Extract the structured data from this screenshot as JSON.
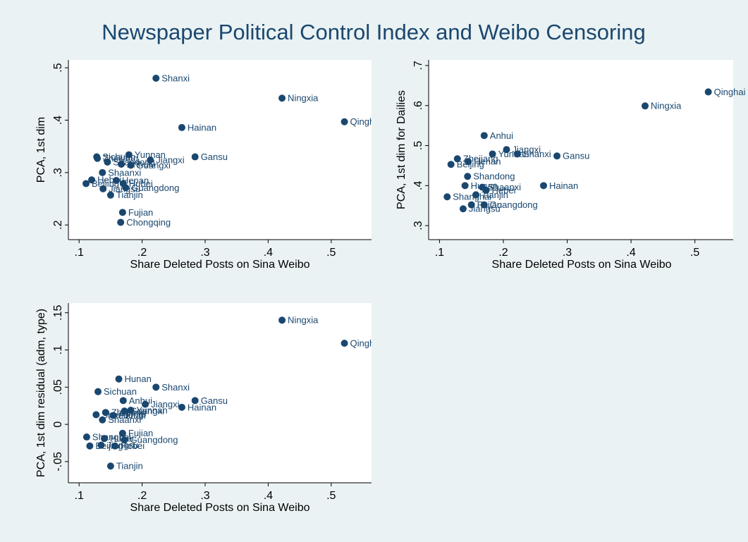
{
  "title": "Newspaper Political Control Index and Weibo Censoring",
  "chart_data": [
    {
      "type": "scatter",
      "x_label": "Share Deleted Posts on Sina Weibo",
      "y_label": "PCA, 1st dim",
      "color": "#1a476f",
      "xlim": [
        0.083,
        0.564
      ],
      "ylim": [
        0.172,
        0.515
      ],
      "xticks": [
        {
          "value": 0.1,
          "label": ".1"
        },
        {
          "value": 0.2,
          "label": ".2"
        },
        {
          "value": 0.3,
          "label": ".3"
        },
        {
          "value": 0.4,
          "label": ".4"
        },
        {
          "value": 0.5,
          "label": ".5"
        }
      ],
      "yticks": [
        {
          "value": 0.2,
          "label": ".2"
        },
        {
          "value": 0.3,
          "label": ".3"
        },
        {
          "value": 0.4,
          "label": ".4"
        },
        {
          "value": 0.5,
          "label": ".5"
        }
      ],
      "labels": [
        "Shanxi",
        "Ningxia",
        "Qinghai",
        "Hainan",
        "Gansu",
        "Yunnan",
        "Jiangxi",
        "Guangxi",
        "Anhui",
        "Sichuan",
        "Zhejiang",
        "Shandong",
        "Shaanxi",
        "Hebei",
        "Beijing",
        "Henan",
        "Hubei",
        "Jiangsu",
        "Guangdong",
        "Tianjin",
        "Fujian",
        "Chongqing"
      ],
      "x": [
        0.222,
        0.422,
        0.521,
        0.263,
        0.284,
        0.179,
        0.213,
        0.182,
        0.167,
        0.128,
        0.129,
        0.145,
        0.137,
        0.12,
        0.111,
        0.159,
        0.17,
        0.138,
        0.174,
        0.15,
        0.169,
        0.166
      ],
      "values": [
        0.48,
        0.442,
        0.397,
        0.386,
        0.33,
        0.334,
        0.324,
        0.314,
        0.316,
        0.33,
        0.327,
        0.32,
        0.3,
        0.286,
        0.279,
        0.285,
        0.279,
        0.269,
        0.271,
        0.257,
        0.224,
        0.205
      ]
    },
    {
      "type": "scatter",
      "x_label": "Share Deleted Posts on Sina Weibo",
      "y_label": "PCA, 1st dim for Dailies",
      "color": "#1a476f",
      "xlim": [
        0.083,
        0.56
      ],
      "ylim": [
        0.265,
        0.714
      ],
      "xticks": [
        {
          "value": 0.1,
          "label": ".1"
        },
        {
          "value": 0.2,
          "label": ".2"
        },
        {
          "value": 0.3,
          "label": ".3"
        },
        {
          "value": 0.4,
          "label": ".4"
        },
        {
          "value": 0.5,
          "label": ".5"
        }
      ],
      "yticks": [
        {
          "value": 0.3,
          "label": ".3"
        },
        {
          "value": 0.4,
          "label": ".4"
        },
        {
          "value": 0.5,
          "label": ".5"
        },
        {
          "value": 0.6,
          "label": ".6"
        },
        {
          "value": 0.7,
          "label": ".7"
        }
      ],
      "labels": [
        "Qinghai",
        "Ningxia",
        "Anhui",
        "Jiangxi",
        "Shanxi",
        "Yunnan",
        "Gansu",
        "Zhejiang",
        "Henan",
        "Beijing",
        "Shandong",
        "Hainan",
        "Shaanxi",
        "Hunan",
        "Hebei",
        "Shanghai",
        "Tianjin",
        "Guangdong",
        "Fujian",
        "Jiangsu"
      ],
      "x": [
        0.521,
        0.422,
        0.17,
        0.205,
        0.222,
        0.183,
        0.284,
        0.128,
        0.145,
        0.118,
        0.144,
        0.263,
        0.167,
        0.14,
        0.173,
        0.112,
        0.157,
        0.17,
        0.15,
        0.137
      ],
      "values": [
        0.634,
        0.599,
        0.525,
        0.49,
        0.479,
        0.479,
        0.474,
        0.467,
        0.46,
        0.453,
        0.423,
        0.4,
        0.396,
        0.4,
        0.388,
        0.372,
        0.377,
        0.352,
        0.352,
        0.342
      ]
    },
    {
      "type": "scatter",
      "x_label": "Share Deleted Posts on Sina Weibo",
      "y_label": "PCA, 1st dim residual (adm, type)",
      "color": "#1a476f",
      "xlim": [
        0.083,
        0.564
      ],
      "ylim": [
        -0.0785,
        0.163
      ],
      "xticks": [
        {
          "value": 0.1,
          "label": ".1"
        },
        {
          "value": 0.2,
          "label": ".2"
        },
        {
          "value": 0.3,
          "label": ".3"
        },
        {
          "value": 0.4,
          "label": ".4"
        },
        {
          "value": 0.5,
          "label": ".5"
        }
      ],
      "yticks": [
        {
          "value": -0.05,
          "label": "-.05"
        },
        0,
        {
          "value": 0.05,
          "label": ".05"
        },
        {
          "value": 0.1,
          "label": ".1"
        },
        {
          "value": 0.15,
          "label": ".15"
        }
      ],
      "labels": [
        "Ningxia",
        "Qinghai",
        "Hunan",
        "Shanxi",
        "Sichuan",
        "Anhui",
        "Gansu",
        "Jiangxi",
        "Hainan",
        "Yunnan",
        "Guangxi",
        "Zhejiang",
        "Shandong",
        "Henan",
        "Shaanxi",
        "Fujian",
        "Shanghai",
        "Guangdong",
        "Hubei",
        "Jiangsu",
        "Hebei",
        "Beijing",
        "Tianjin"
      ],
      "x": [
        0.422,
        0.521,
        0.163,
        0.222,
        0.13,
        0.17,
        0.284,
        0.205,
        0.263,
        0.182,
        0.172,
        0.142,
        0.127,
        0.154,
        0.137,
        0.169,
        0.112,
        0.172,
        0.14,
        0.135,
        0.157,
        0.117,
        0.15
      ],
      "values": [
        0.14,
        0.109,
        0.061,
        0.05,
        0.044,
        0.032,
        0.032,
        0.027,
        0.023,
        0.019,
        0.018,
        0.016,
        0.013,
        0.012,
        0.006,
        -0.012,
        -0.017,
        -0.021,
        -0.019,
        -0.028,
        -0.029,
        -0.029,
        -0.056
      ]
    }
  ]
}
